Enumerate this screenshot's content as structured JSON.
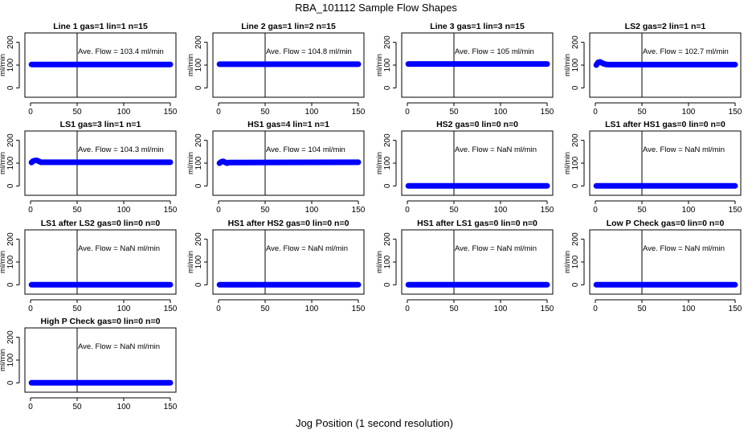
{
  "figure": {
    "title": "RBA_101112  Sample Flow Shapes",
    "xlabel": "Jog Position (1 second resolution)"
  },
  "colors": {
    "series": "#0000ff",
    "axis": "#000000",
    "background": "#ffffff"
  },
  "chart_data": [
    {
      "type": "scatter",
      "title": "Line 1 gas=1 lin=1 n=15",
      "ylabel": "ml/min",
      "xlim": [
        0,
        150
      ],
      "ylim": [
        -20,
        220
      ],
      "xticks": [
        0,
        50,
        100,
        150
      ],
      "yticks": [
        0,
        100,
        200
      ],
      "vline": 50,
      "annotation": "Ave. Flow =  103.4  ml/min",
      "series": [
        {
          "name": "flow",
          "x": [
            1,
            150
          ],
          "y": [
            103,
            103
          ]
        }
      ]
    },
    {
      "type": "scatter",
      "title": "Line 2 gas=1 lin=2 n=15",
      "ylabel": "ml/min",
      "xlim": [
        0,
        150
      ],
      "ylim": [
        -20,
        220
      ],
      "xticks": [
        0,
        50,
        100,
        150
      ],
      "yticks": [
        0,
        100,
        200
      ],
      "vline": 50,
      "annotation": "Ave. Flow =  104.8  ml/min",
      "series": [
        {
          "name": "flow",
          "x": [
            1,
            150
          ],
          "y": [
            104,
            104
          ]
        }
      ]
    },
    {
      "type": "scatter",
      "title": "Line 3 gas=1 lin=3 n=15",
      "ylabel": "ml/min",
      "xlim": [
        0,
        150
      ],
      "ylim": [
        -20,
        220
      ],
      "xticks": [
        0,
        50,
        100,
        150
      ],
      "yticks": [
        0,
        100,
        200
      ],
      "vline": 50,
      "annotation": "Ave. Flow =  105  ml/min",
      "series": [
        {
          "name": "flow",
          "x": [
            1,
            150
          ],
          "y": [
            105,
            105
          ]
        }
      ]
    },
    {
      "type": "scatter",
      "title": "LS2 gas=2 lin=1 n=1",
      "ylabel": "ml/min",
      "xlim": [
        0,
        150
      ],
      "ylim": [
        -20,
        220
      ],
      "xticks": [
        0,
        50,
        100,
        150
      ],
      "yticks": [
        0,
        100,
        200
      ],
      "vline": 50,
      "annotation": "Ave. Flow =  102.7  ml/min",
      "series": [
        {
          "name": "flow",
          "x": [
            1,
            3,
            5,
            7,
            9,
            12,
            16,
            150
          ],
          "y": [
            100,
            112,
            114,
            110,
            106,
            103,
            102,
            102
          ]
        }
      ]
    },
    {
      "type": "scatter",
      "title": "LS1 gas=3 lin=1 n=1",
      "ylabel": "ml/min",
      "xlim": [
        0,
        150
      ],
      "ylim": [
        -20,
        220
      ],
      "xticks": [
        0,
        50,
        100,
        150
      ],
      "yticks": [
        0,
        100,
        200
      ],
      "vline": 50,
      "annotation": "Ave. Flow =  104.3  ml/min",
      "series": [
        {
          "name": "flow",
          "x": [
            1,
            3,
            5,
            7,
            9,
            11,
            150
          ],
          "y": [
            103,
            110,
            112,
            112,
            108,
            104,
            104
          ]
        }
      ]
    },
    {
      "type": "scatter",
      "title": "HS1 gas=4 lin=1 n=1",
      "ylabel": "ml/min",
      "xlim": [
        0,
        150
      ],
      "ylim": [
        -20,
        220
      ],
      "xticks": [
        0,
        50,
        100,
        150
      ],
      "yticks": [
        0,
        100,
        200
      ],
      "vline": 50,
      "annotation": "Ave. Flow =  104  ml/min",
      "series": [
        {
          "name": "flow",
          "x": [
            1,
            3,
            5,
            7,
            9,
            11,
            150
          ],
          "y": [
            100,
            106,
            108,
            104,
            100,
            103,
            104
          ]
        }
      ]
    },
    {
      "type": "scatter",
      "title": "HS2 gas=0 lin=0 n=0",
      "ylabel": "ml/min",
      "xlim": [
        0,
        150
      ],
      "ylim": [
        -20,
        220
      ],
      "xticks": [
        0,
        50,
        100,
        150
      ],
      "yticks": [
        0,
        100,
        200
      ],
      "vline": 50,
      "annotation": "Ave. Flow =  NaN  ml/min",
      "series": [
        {
          "name": "flow",
          "x": [
            1,
            150
          ],
          "y": [
            0,
            0
          ]
        }
      ]
    },
    {
      "type": "scatter",
      "title": "LS1 after HS1 gas=0 lin=0 n=0",
      "ylabel": "ml/min",
      "xlim": [
        0,
        150
      ],
      "ylim": [
        -20,
        220
      ],
      "xticks": [
        0,
        50,
        100,
        150
      ],
      "yticks": [
        0,
        100,
        200
      ],
      "vline": 50,
      "annotation": "Ave. Flow =  NaN  ml/min",
      "series": [
        {
          "name": "flow",
          "x": [
            1,
            150
          ],
          "y": [
            0,
            0
          ]
        }
      ]
    },
    {
      "type": "scatter",
      "title": "LS1 after LS2 gas=0 lin=0 n=0",
      "ylabel": "ml/min",
      "xlim": [
        0,
        150
      ],
      "ylim": [
        -20,
        220
      ],
      "xticks": [
        0,
        50,
        100,
        150
      ],
      "yticks": [
        0,
        100,
        200
      ],
      "vline": 50,
      "annotation": "Ave. Flow =  NaN  ml/min",
      "series": [
        {
          "name": "flow",
          "x": [
            1,
            150
          ],
          "y": [
            0,
            0
          ]
        }
      ]
    },
    {
      "type": "scatter",
      "title": "HS1 after HS2 gas=0 lin=0 n=0",
      "ylabel": "ml/min",
      "xlim": [
        0,
        150
      ],
      "ylim": [
        -20,
        220
      ],
      "xticks": [
        0,
        50,
        100,
        150
      ],
      "yticks": [
        0,
        100,
        200
      ],
      "vline": 50,
      "annotation": "Ave. Flow =  NaN  ml/min",
      "series": [
        {
          "name": "flow",
          "x": [
            1,
            150
          ],
          "y": [
            0,
            0
          ]
        }
      ]
    },
    {
      "type": "scatter",
      "title": "HS1 after LS1 gas=0 lin=0 n=0",
      "ylabel": "ml/min",
      "xlim": [
        0,
        150
      ],
      "ylim": [
        -20,
        220
      ],
      "xticks": [
        0,
        50,
        100,
        150
      ],
      "yticks": [
        0,
        100,
        200
      ],
      "vline": 50,
      "annotation": "Ave. Flow =  NaN  ml/min",
      "series": [
        {
          "name": "flow",
          "x": [
            1,
            150
          ],
          "y": [
            0,
            0
          ]
        }
      ]
    },
    {
      "type": "scatter",
      "title": "Low P Check gas=0 lin=0 n=0",
      "ylabel": "ml/min",
      "xlim": [
        0,
        150
      ],
      "ylim": [
        -20,
        220
      ],
      "xticks": [
        0,
        50,
        100,
        150
      ],
      "yticks": [
        0,
        100,
        200
      ],
      "vline": 50,
      "annotation": "Ave. Flow =  NaN  ml/min",
      "series": [
        {
          "name": "flow",
          "x": [
            1,
            150
          ],
          "y": [
            0,
            0
          ]
        }
      ]
    },
    {
      "type": "scatter",
      "title": "High P Check gas=0 lin=0 n=0",
      "ylabel": "ml/min",
      "xlim": [
        0,
        150
      ],
      "ylim": [
        -20,
        220
      ],
      "xticks": [
        0,
        50,
        100,
        150
      ],
      "yticks": [
        0,
        100,
        200
      ],
      "vline": 50,
      "annotation": "Ave. Flow =  NaN  ml/min",
      "series": [
        {
          "name": "flow",
          "x": [
            1,
            150
          ],
          "y": [
            0,
            0
          ]
        }
      ]
    }
  ]
}
